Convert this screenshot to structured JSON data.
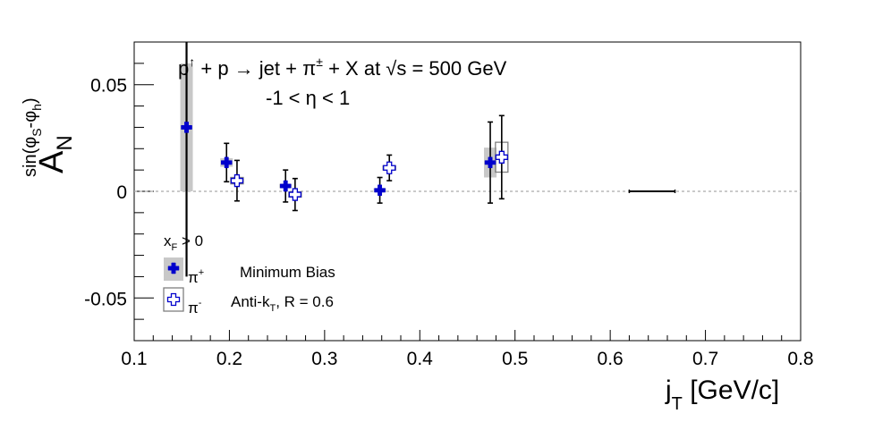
{
  "chart_data": {
    "type": "scatter",
    "title_line1": {
      "pre": "p",
      "pre_sup": "↑",
      "mid": " + p → jet + π",
      "mid_sup": "±",
      "post": " + X at  √s = 500 GeV"
    },
    "title_line2": "-1 < η < 1",
    "xlabel": {
      "main": "j",
      "sub": "T",
      "rest": " [GeV/c]"
    },
    "ylabel": {
      "main": "A",
      "sub": "N",
      "sup_pre": "sin(φ",
      "sup_sub1": "S",
      "sup_mid": "-φ",
      "sup_sub2": "h",
      "sup_post": ")"
    },
    "xlim": [
      0.1,
      0.8
    ],
    "ylim": [
      -0.07,
      0.07
    ],
    "x_ticks": [
      0.1,
      0.2,
      0.3,
      0.4,
      0.5,
      0.6,
      0.7,
      0.8
    ],
    "x_tick_labels": [
      "0.1",
      "0.2",
      "0.3",
      "0.4",
      "0.5",
      "0.6",
      "0.7",
      "0.8"
    ],
    "y_ticks": [
      -0.05,
      0,
      0.05
    ],
    "y_tick_labels": [
      "-0.05",
      "0",
      "0.05"
    ],
    "zero_line": true,
    "series": [
      {
        "name": "π+",
        "marker": "filled-cross",
        "color": "#0000cc",
        "syst_color": "#c8c8c8",
        "points": [
          {
            "x": 0.155,
            "y": 0.03,
            "err": 0.07,
            "syst": 0.03
          },
          {
            "x": 0.197,
            "y": 0.0135,
            "err": 0.009,
            "syst": 0.002
          },
          {
            "x": 0.259,
            "y": 0.0025,
            "err": 0.0075,
            "syst": 0.001
          },
          {
            "x": 0.358,
            "y": 0.0005,
            "err": 0.006,
            "syst": 0.001
          },
          {
            "x": 0.474,
            "y": 0.0135,
            "err": 0.019,
            "syst": 0.007
          }
        ]
      },
      {
        "name": "π-",
        "marker": "open-cross",
        "color": "#0000cc",
        "syst_color": "#808080",
        "points": [
          {
            "x": 0.208,
            "y": 0.005,
            "err": 0.0095,
            "syst": 0.0015
          },
          {
            "x": 0.269,
            "y": -0.0015,
            "err": 0.0075,
            "syst": 0.0012
          },
          {
            "x": 0.368,
            "y": 0.011,
            "err": 0.006,
            "syst": 0.001
          },
          {
            "x": 0.486,
            "y": 0.016,
            "err": 0.0195,
            "syst": 0.007
          }
        ]
      }
    ],
    "horizontal_marker": {
      "x_range": [
        0.62,
        0.668
      ],
      "y": 0.0
    },
    "legend": {
      "header_main": "x",
      "header_sub": "F",
      "header_rest": " > 0",
      "entries": [
        {
          "label_main": "π",
          "label_sup": "+",
          "description": "Minimum Bias"
        },
        {
          "label_main": "π",
          "label_sup": "-",
          "description_main": "Anti-k",
          "description_sub": "T",
          "description_rest": ", R = 0.6"
        }
      ]
    }
  }
}
